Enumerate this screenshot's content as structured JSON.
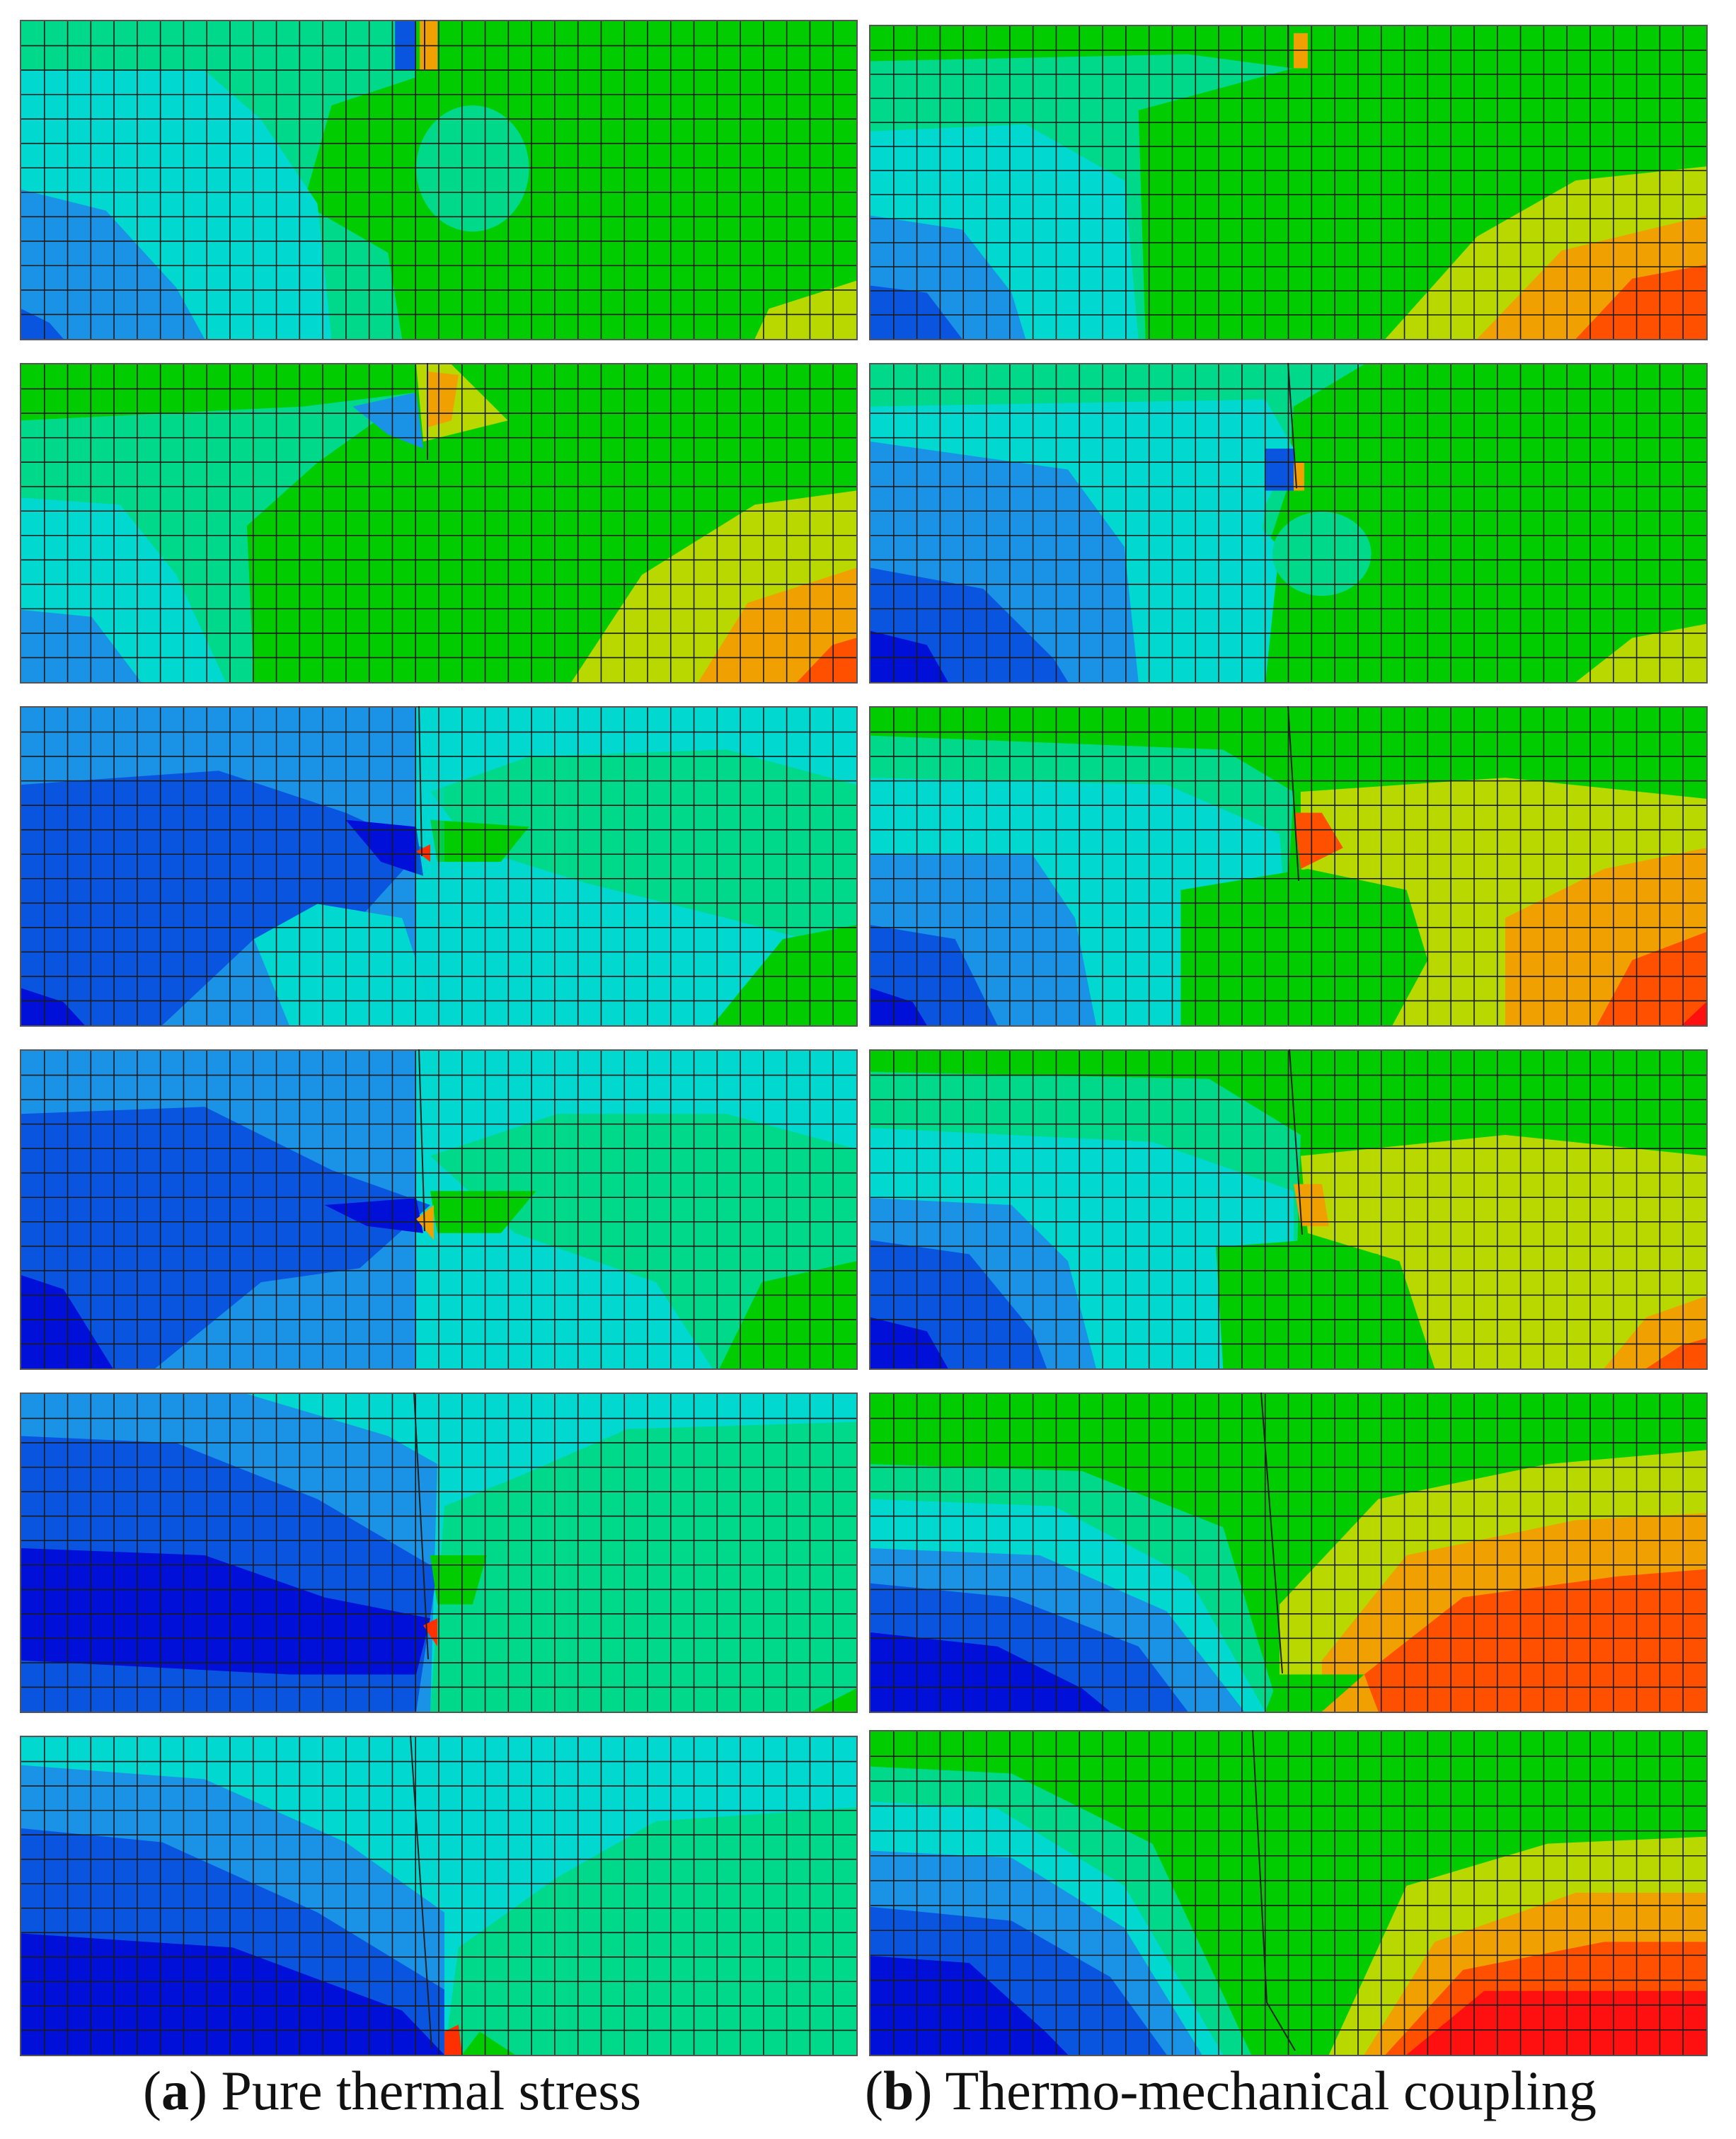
{
  "captions": {
    "a": {
      "letter": "a",
      "text": "Pure thermal stress"
    },
    "b": {
      "letter": "b",
      "text": "Thermo-mechanical coupling"
    }
  },
  "colors": {
    "deep_blue": "#0010d8",
    "blue": "#0a55e0",
    "mid_blue": "#1a93e6",
    "cyan": "#00d8d0",
    "sea_green": "#00d88a",
    "green": "#00cc00",
    "yellow_green": "#b8d800",
    "orange": "#f0a000",
    "red_orange": "#ff5000",
    "red": "#ff1010"
  },
  "mesh": {
    "columns_a": 36,
    "columns_b": 36,
    "rows": 13
  }
}
